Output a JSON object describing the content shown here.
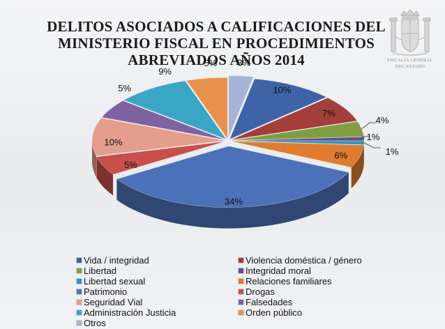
{
  "header": {
    "title_lines": [
      "DELITOS ASOCIADOS A CALIFICACIONES DEL",
      "MINISTERIO FISCAL EN PROCEDIMIENTOS",
      "ABREVIADOS AÑOS 2014"
    ],
    "emblem_text_lines": [
      "FISCALÍA GENERAL",
      "DEL ESTADO"
    ]
  },
  "chart_data": {
    "type": "pie",
    "title": "DELITOS ASOCIADOS A CALIFICACIONES DEL MINISTERIO FISCAL EN PROCEDIMIENTOS ABREVIADOS AÑOS 2014",
    "legend_position": "bottom",
    "slices": [
      {
        "name": "Otros",
        "value": 3,
        "label": "3%",
        "color": "#a6b5d7"
      },
      {
        "name": "Vida / integridad",
        "value": 10,
        "label": "10%",
        "color": "#3f63a8"
      },
      {
        "name": "Violencia doméstica / género",
        "value": 7,
        "label": "7%",
        "color": "#a43e3b"
      },
      {
        "name": "Libertad",
        "value": 4,
        "label": "4%",
        "color": "#7f9e42"
      },
      {
        "name": "Integridad moral",
        "value": 1,
        "label": "1%",
        "color": "#6a4a8c"
      },
      {
        "name": "Libertad sexual",
        "value": 1,
        "label": "1%",
        "color": "#2f97b9"
      },
      {
        "name": "Relaciones familiares",
        "value": 6,
        "label": "6%",
        "color": "#e07b2f"
      },
      {
        "name": "Patrimonio",
        "value": 34,
        "label": "34%",
        "color": "#4b72b8"
      },
      {
        "name": "Drogas",
        "value": 5,
        "label": "5%",
        "color": "#c84f4c"
      },
      {
        "name": "Seguridad Vial",
        "value": 10,
        "label": "10%",
        "color": "#e49e8b"
      },
      {
        "name": "Falsedades",
        "value": 5,
        "label": "5%",
        "color": "#7f62a1"
      },
      {
        "name": "Administración Justicia",
        "value": 9,
        "label": "9%",
        "color": "#3aa6c6"
      },
      {
        "name": "Orden público",
        "value": 5,
        "label": "5%",
        "color": "#e8914c"
      }
    ],
    "legend": [
      {
        "name": "Vida / integridad",
        "color": "#3f63a8"
      },
      {
        "name": "Violencia doméstica / género",
        "color": "#a43e3b"
      },
      {
        "name": "Libertad",
        "color": "#7f9e42"
      },
      {
        "name": "Integridad moral",
        "color": "#6a4a8c"
      },
      {
        "name": "Libertad sexual",
        "color": "#2f97b9"
      },
      {
        "name": "Relaciones familiares",
        "color": "#e07b2f"
      },
      {
        "name": "Patrimonio",
        "color": "#4b72b8"
      },
      {
        "name": "Drogas",
        "color": "#c84f4c"
      },
      {
        "name": "Seguridad Vial",
        "color": "#e49e8b"
      },
      {
        "name": "Falsedades",
        "color": "#7f62a1"
      },
      {
        "name": "Administración Justicia",
        "color": "#3aa6c6"
      },
      {
        "name": "Orden público",
        "color": "#e8914c"
      },
      {
        "name": "Otros",
        "color": "#a6b5d7"
      }
    ]
  }
}
